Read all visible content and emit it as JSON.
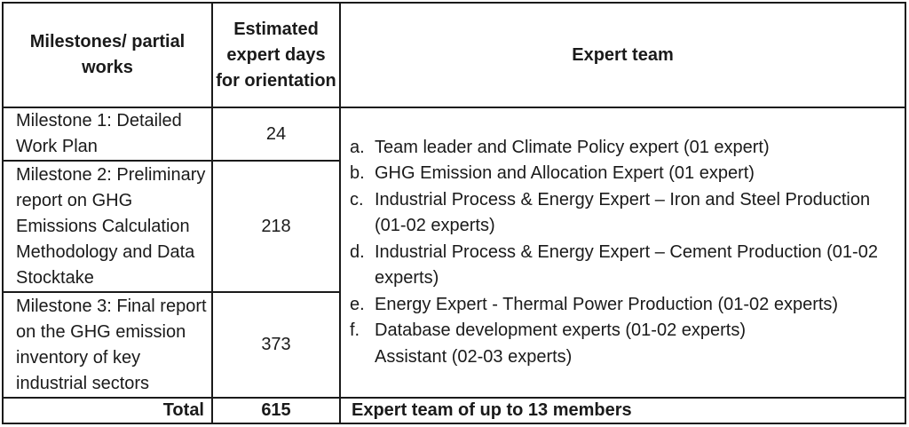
{
  "table": {
    "headers": {
      "milestones": "Milestones/ partial works",
      "days": "Estimated expert days for orientation",
      "team": "Expert team"
    },
    "rows": [
      {
        "milestone": "Milestone 1: Detailed Work Plan",
        "days": "24"
      },
      {
        "milestone": "Milestone 2: Preliminary report on GHG Emissions Calculation Methodology and Data Stocktake",
        "days": "218"
      },
      {
        "milestone": "Milestone 3: Final report on the GHG emission inventory of key industrial sectors",
        "days": "373"
      }
    ],
    "team_items": [
      {
        "marker": "a.",
        "text": "Team leader and Climate Policy expert (01 expert)"
      },
      {
        "marker": "b.",
        "text": "GHG Emission and Allocation Expert (01 expert)"
      },
      {
        "marker": "c.",
        "text": "Industrial Process & Energy Expert – Iron and Steel Production (01-02 experts)"
      },
      {
        "marker": "d.",
        "text": "Industrial Process & Energy Expert – Cement Production (01-02 experts)"
      },
      {
        "marker": "e.",
        "text": "Energy Expert - Thermal Power Production (01-02 experts)"
      },
      {
        "marker": "f.",
        "text": "Database development experts (01-02 experts)"
      }
    ],
    "team_assistant": "Assistant (02-03 experts)",
    "total": {
      "label": "Total",
      "days": "615",
      "team": "Expert team of up to 13 members"
    }
  }
}
